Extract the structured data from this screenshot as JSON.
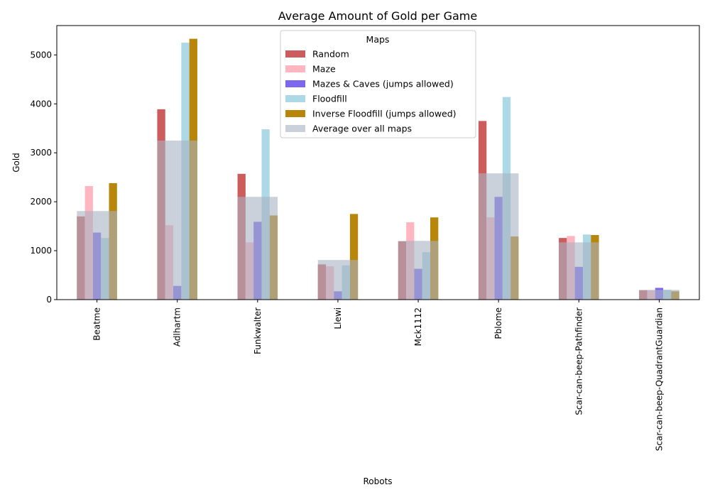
{
  "chart_data": {
    "type": "bar",
    "title": "Average Amount of Gold per Game",
    "xlabel": "Robots",
    "ylabel": "Gold",
    "ylim": [
      0,
      5600
    ],
    "yticks": [
      0,
      1000,
      2000,
      3000,
      4000,
      5000
    ],
    "grid": false,
    "legend": {
      "title": "Maps",
      "placement": "top-center"
    },
    "categories": [
      "Beatme",
      "Adlhartm",
      "Funkwalter",
      "Llewi",
      "Mck1112",
      "Pblome",
      "Scar-can-beep-Pathfinder",
      "Scar-can-beep-QuadrantGuardian"
    ],
    "series": [
      {
        "name": "Random",
        "color": "#cd5c5c",
        "values": [
          1700,
          3890,
          2570,
          720,
          1190,
          3650,
          1260,
          190
        ]
      },
      {
        "name": "Maze",
        "color": "#ffb6c1",
        "values": [
          2320,
          1520,
          1170,
          680,
          1580,
          1680,
          1300,
          190
        ]
      },
      {
        "name": "Mazes & Caves (jumps allowed)",
        "color": "#7b68ee",
        "values": [
          1370,
          280,
          1590,
          170,
          630,
          2100,
          670,
          240
        ]
      },
      {
        "name": "Floodfill",
        "color": "#add8e6",
        "values": [
          1260,
          5250,
          3480,
          700,
          970,
          4140,
          1330,
          200
        ]
      },
      {
        "name": "Inverse Floodfill (jumps allowed)",
        "color": "#b8860b",
        "values": [
          2380,
          5330,
          1720,
          1750,
          1680,
          1290,
          1320,
          170
        ]
      }
    ],
    "average": {
      "name": "Average over all maps",
      "color": "#a9b3c2",
      "opacity": 0.6,
      "values": [
        1810,
        3250,
        2100,
        810,
        1200,
        2580,
        1170,
        200
      ]
    }
  }
}
